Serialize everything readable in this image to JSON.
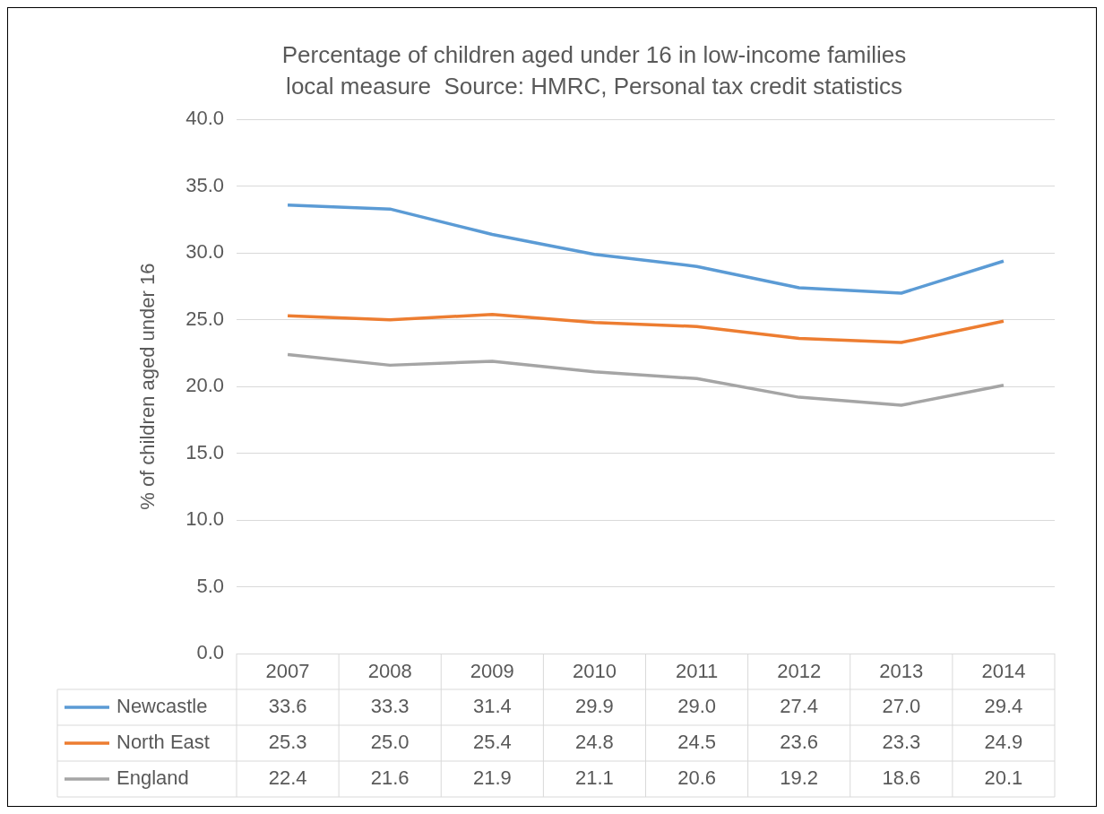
{
  "chart_data": {
    "type": "line",
    "title": "Percentage of children aged under 16 in low-income families",
    "subtitle": "local measure  Source: HMRC, Personal tax credit statistics",
    "ylabel": "% of children aged under 16",
    "categories": [
      "2007",
      "2008",
      "2009",
      "2010",
      "2011",
      "2012",
      "2013",
      "2014"
    ],
    "series": [
      {
        "name": "Newcastle",
        "color": "#5b9bd5",
        "values": [
          33.6,
          33.3,
          31.4,
          29.9,
          29.0,
          27.4,
          27.0,
          29.4
        ],
        "value_labels": [
          "33.6",
          "33.3",
          "31.4",
          "29.9",
          "29.0",
          "27.4",
          "27.0",
          "29.4"
        ]
      },
      {
        "name": "North East",
        "color": "#ed7d31",
        "values": [
          25.3,
          25.0,
          25.4,
          24.8,
          24.5,
          23.6,
          23.3,
          24.9
        ],
        "value_labels": [
          "25.3",
          "25.0",
          "25.4",
          "24.8",
          "24.5",
          "23.6",
          "23.3",
          "24.9"
        ]
      },
      {
        "name": "England",
        "color": "#a5a5a5",
        "values": [
          22.4,
          21.6,
          21.9,
          21.1,
          20.6,
          19.2,
          18.6,
          20.1
        ],
        "value_labels": [
          "22.4",
          "21.6",
          "21.9",
          "21.1",
          "20.6",
          "19.2",
          "18.6",
          "20.1"
        ]
      }
    ],
    "ylim": [
      0,
      40
    ],
    "yticks": [
      {
        "value": 0,
        "label": "0.0"
      },
      {
        "value": 5,
        "label": "5.0"
      },
      {
        "value": 10,
        "label": "10.0"
      },
      {
        "value": 15,
        "label": "15.0"
      },
      {
        "value": 20,
        "label": "20.0"
      },
      {
        "value": 25,
        "label": "25.0"
      },
      {
        "value": 30,
        "label": "30.0"
      },
      {
        "value": 35,
        "label": "35.0"
      },
      {
        "value": 40,
        "label": "40.0"
      }
    ],
    "grid": "y",
    "legend": "bottom",
    "marker": "none",
    "line_style": "solid"
  }
}
